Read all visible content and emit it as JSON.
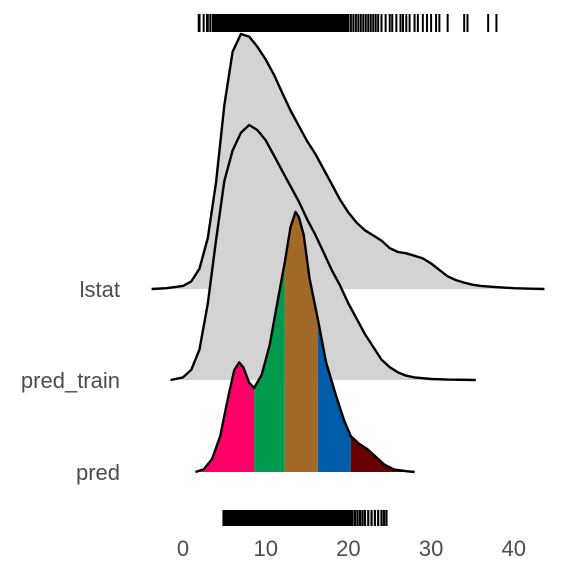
{
  "chart_data": {
    "type": "ridgeline",
    "title": "",
    "xlabel": "",
    "ylabel": "",
    "xlim": [
      -3.5,
      44
    ],
    "x_ticks": [
      0,
      10,
      20,
      30,
      40
    ],
    "grid": false,
    "legend": "none",
    "rows": [
      {
        "label": "lstat",
        "fill": "#d3d3d3",
        "density": [
          [
            -3.8,
            0.0
          ],
          [
            -2,
            0.003
          ],
          [
            0,
            0.012
          ],
          [
            1,
            0.03
          ],
          [
            2,
            0.08
          ],
          [
            3,
            0.2
          ],
          [
            4,
            0.42
          ],
          [
            5,
            0.72
          ],
          [
            6,
            0.93
          ],
          [
            7,
            1.0
          ],
          [
            8,
            0.99
          ],
          [
            9,
            0.95
          ],
          [
            10,
            0.9
          ],
          [
            11,
            0.84
          ],
          [
            12,
            0.77
          ],
          [
            13,
            0.7
          ],
          [
            14,
            0.64
          ],
          [
            15,
            0.58
          ],
          [
            16,
            0.53
          ],
          [
            17,
            0.47
          ],
          [
            18,
            0.41
          ],
          [
            19,
            0.35
          ],
          [
            20,
            0.3
          ],
          [
            21,
            0.26
          ],
          [
            22,
            0.23
          ],
          [
            23,
            0.21
          ],
          [
            24,
            0.19
          ],
          [
            25,
            0.16
          ],
          [
            26,
            0.145
          ],
          [
            27,
            0.14
          ],
          [
            28,
            0.13
          ],
          [
            29,
            0.12
          ],
          [
            30,
            0.1
          ],
          [
            31,
            0.075
          ],
          [
            32,
            0.05
          ],
          [
            33,
            0.035
          ],
          [
            34,
            0.025
          ],
          [
            35,
            0.017
          ],
          [
            36,
            0.012
          ],
          [
            38,
            0.007
          ],
          [
            40,
            0.003
          ],
          [
            42,
            0.001
          ],
          [
            43.7,
            0.0
          ]
        ]
      },
      {
        "label": "pred_train",
        "fill": "#d3d3d3",
        "density": [
          [
            -1.5,
            0.0
          ],
          [
            0,
            0.01
          ],
          [
            1,
            0.04
          ],
          [
            2,
            0.12
          ],
          [
            3,
            0.3
          ],
          [
            4,
            0.55
          ],
          [
            5,
            0.78
          ],
          [
            6,
            0.9
          ],
          [
            7,
            0.97
          ],
          [
            8,
            1.0
          ],
          [
            9,
            0.98
          ],
          [
            10,
            0.94
          ],
          [
            11,
            0.88
          ],
          [
            12,
            0.82
          ],
          [
            13,
            0.76
          ],
          [
            14,
            0.7
          ],
          [
            15,
            0.63
          ],
          [
            16,
            0.57
          ],
          [
            17,
            0.5
          ],
          [
            18,
            0.43
          ],
          [
            19,
            0.37
          ],
          [
            20,
            0.3
          ],
          [
            21,
            0.24
          ],
          [
            22,
            0.18
          ],
          [
            23,
            0.13
          ],
          [
            24,
            0.08
          ],
          [
            25,
            0.05
          ],
          [
            26,
            0.03
          ],
          [
            27,
            0.017
          ],
          [
            28,
            0.01
          ],
          [
            30,
            0.004
          ],
          [
            32,
            0.0015
          ],
          [
            35.4,
            0.0
          ]
        ]
      },
      {
        "label": "pred",
        "fill": "#d3d3d3",
        "band_breaks": [
          8.6,
          12.3,
          16.3,
          20.3
        ],
        "band_colors": [
          "#ff0066",
          "#009a4e",
          "#a16a28",
          "#005ba9",
          "#6b0000"
        ],
        "density": [
          [
            1.5,
            0.0
          ],
          [
            2.5,
            0.01
          ],
          [
            3.5,
            0.05
          ],
          [
            4.5,
            0.14
          ],
          [
            5.5,
            0.3
          ],
          [
            6.2,
            0.4
          ],
          [
            6.8,
            0.43
          ],
          [
            7.3,
            0.41
          ],
          [
            8,
            0.35
          ],
          [
            8.6,
            0.33
          ],
          [
            9.5,
            0.38
          ],
          [
            10.5,
            0.5
          ],
          [
            11.5,
            0.68
          ],
          [
            12.3,
            0.82
          ],
          [
            13,
            0.96
          ],
          [
            13.6,
            1.02
          ],
          [
            14,
            1.0
          ],
          [
            14.6,
            0.93
          ],
          [
            15.3,
            0.76
          ],
          [
            16.3,
            0.6
          ],
          [
            17.3,
            0.43
          ],
          [
            18.5,
            0.3
          ],
          [
            19.5,
            0.2
          ],
          [
            20.3,
            0.14
          ],
          [
            21.3,
            0.11
          ],
          [
            22.3,
            0.09
          ],
          [
            23.3,
            0.06
          ],
          [
            24.3,
            0.03
          ],
          [
            25.5,
            0.01
          ],
          [
            27,
            0.003
          ],
          [
            28,
            0.0
          ]
        ]
      }
    ],
    "rug_top": [
      1.9,
      2.0,
      2.5,
      2.9,
      3.0,
      3.3,
      3.6,
      3.8,
      4.0,
      4.2,
      4.4,
      4.6,
      4.8,
      5.0,
      5.2,
      5.4,
      5.6,
      5.8,
      6.0,
      6.2,
      6.4,
      6.6,
      6.8,
      7.0,
      7.2,
      7.4,
      7.6,
      7.8,
      8.0,
      8.2,
      8.4,
      8.6,
      8.8,
      9.0,
      9.2,
      9.4,
      9.6,
      9.8,
      10.0,
      10.2,
      10.4,
      10.6,
      10.8,
      11.0,
      11.2,
      11.4,
      11.6,
      11.8,
      12.0,
      12.2,
      12.4,
      12.6,
      12.8,
      13.0,
      13.2,
      13.4,
      13.6,
      13.8,
      14.0,
      14.2,
      14.4,
      14.6,
      14.8,
      15.0,
      15.2,
      15.4,
      15.6,
      15.8,
      16.0,
      16.2,
      16.4,
      16.6,
      16.8,
      17.0,
      17.2,
      17.4,
      17.6,
      17.8,
      18.0,
      18.2,
      18.4,
      18.6,
      18.8,
      19.0,
      19.2,
      19.4,
      19.6,
      19.8,
      20.0,
      20.3,
      20.6,
      20.9,
      21.2,
      21.5,
      21.8,
      22.1,
      22.4,
      22.7,
      23.0,
      23.3,
      23.6,
      24.0,
      24.5,
      25.0,
      25.3,
      25.8,
      26.3,
      26.6,
      27.0,
      27.4,
      28.0,
      28.4,
      29.0,
      29.5,
      30.0,
      30.6,
      31.0,
      32.0,
      34.0,
      34.4,
      36.9,
      37.9
    ],
    "rug_bottom": [
      4.9,
      5.1,
      5.3,
      5.5,
      5.7,
      5.9,
      6.1,
      6.3,
      6.5,
      6.7,
      6.9,
      7.1,
      7.3,
      7.5,
      7.7,
      7.9,
      8.1,
      8.3,
      8.5,
      8.7,
      8.9,
      9.1,
      9.3,
      9.5,
      9.7,
      9.9,
      10.1,
      10.3,
      10.5,
      10.7,
      10.9,
      11.1,
      11.3,
      11.5,
      11.7,
      11.9,
      12.1,
      12.3,
      12.5,
      12.7,
      12.9,
      13.1,
      13.3,
      13.5,
      13.7,
      13.9,
      14.1,
      14.3,
      14.5,
      14.7,
      14.9,
      15.1,
      15.3,
      15.5,
      15.7,
      15.9,
      16.1,
      16.3,
      16.5,
      16.7,
      16.9,
      17.1,
      17.3,
      17.5,
      17.7,
      17.9,
      18.1,
      18.3,
      18.5,
      18.7,
      18.9,
      19.1,
      19.3,
      19.5,
      19.7,
      19.9,
      20.1,
      20.3,
      20.5,
      20.8,
      21.1,
      21.4,
      21.7,
      22.0,
      22.4,
      22.8,
      23.2,
      23.6,
      24.0,
      24.3,
      24.6
    ]
  }
}
